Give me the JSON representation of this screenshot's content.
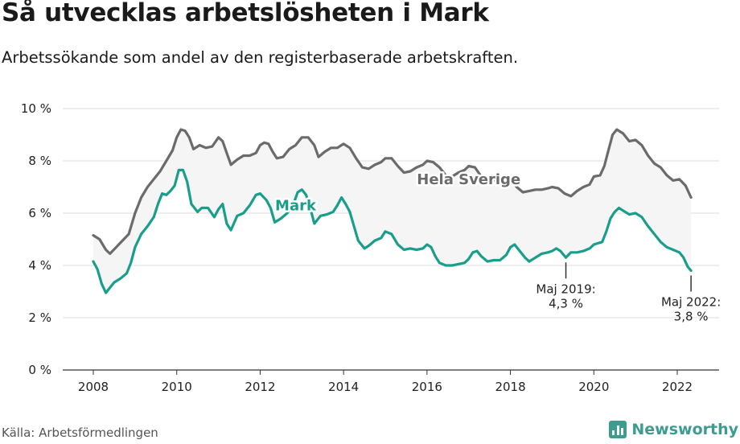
{
  "title": "Så utvecklas arbetslösheten i Mark",
  "subtitle": "Arbetssökande som andel av den registerbaserade arbetskraften.",
  "source": "Källa: Arbetsförmedlingen",
  "brand": {
    "name": "Newsworthy",
    "icon": "bar-chart-logo-icon"
  },
  "colors": {
    "mark": "#1a9e8c",
    "sweden": "#6b6b6e",
    "band": "#f5f5f5",
    "grid": "#dcdcdc",
    "brand": "#3c9c90"
  },
  "chart_data": {
    "type": "line",
    "title": "Så utvecklas arbetslösheten i Mark",
    "xlabel": "",
    "ylabel": "",
    "xlim": [
      2007.7,
      2023.0
    ],
    "ylim": [
      0,
      10
    ],
    "x_ticks": [
      "2008",
      "2010",
      "2012",
      "2014",
      "2016",
      "2018",
      "2020",
      "2022"
    ],
    "y_ticks": [
      "0 %",
      "2 %",
      "4 %",
      "6 %",
      "8 %",
      "10 %"
    ],
    "grid": "horizontal",
    "series": [
      {
        "name": "Hela Sverige",
        "color": "#6b6b6e",
        "points": [
          [
            2008.0,
            5.15
          ],
          [
            2008.15,
            5.0
          ],
          [
            2008.3,
            4.6
          ],
          [
            2008.4,
            4.45
          ],
          [
            2008.55,
            4.7
          ],
          [
            2008.7,
            4.95
          ],
          [
            2008.85,
            5.2
          ],
          [
            2009.0,
            6.0
          ],
          [
            2009.15,
            6.6
          ],
          [
            2009.3,
            7.0
          ],
          [
            2009.45,
            7.3
          ],
          [
            2009.6,
            7.6
          ],
          [
            2009.75,
            8.0
          ],
          [
            2009.9,
            8.4
          ],
          [
            2010.0,
            8.9
          ],
          [
            2010.1,
            9.2
          ],
          [
            2010.2,
            9.15
          ],
          [
            2010.3,
            8.9
          ],
          [
            2010.4,
            8.45
          ],
          [
            2010.55,
            8.6
          ],
          [
            2010.7,
            8.5
          ],
          [
            2010.85,
            8.55
          ],
          [
            2011.0,
            8.9
          ],
          [
            2011.1,
            8.75
          ],
          [
            2011.2,
            8.3
          ],
          [
            2011.3,
            7.85
          ],
          [
            2011.45,
            8.05
          ],
          [
            2011.6,
            8.2
          ],
          [
            2011.75,
            8.2
          ],
          [
            2011.9,
            8.3
          ],
          [
            2012.0,
            8.6
          ],
          [
            2012.1,
            8.7
          ],
          [
            2012.2,
            8.65
          ],
          [
            2012.3,
            8.35
          ],
          [
            2012.4,
            8.1
          ],
          [
            2012.55,
            8.15
          ],
          [
            2012.7,
            8.45
          ],
          [
            2012.85,
            8.6
          ],
          [
            2013.0,
            8.9
          ],
          [
            2013.15,
            8.9
          ],
          [
            2013.3,
            8.6
          ],
          [
            2013.4,
            8.15
          ],
          [
            2013.55,
            8.35
          ],
          [
            2013.7,
            8.5
          ],
          [
            2013.85,
            8.5
          ],
          [
            2014.0,
            8.65
          ],
          [
            2014.15,
            8.5
          ],
          [
            2014.3,
            8.1
          ],
          [
            2014.45,
            7.75
          ],
          [
            2014.6,
            7.7
          ],
          [
            2014.75,
            7.85
          ],
          [
            2014.9,
            7.95
          ],
          [
            2015.0,
            8.1
          ],
          [
            2015.15,
            8.1
          ],
          [
            2015.3,
            7.8
          ],
          [
            2015.45,
            7.55
          ],
          [
            2015.6,
            7.6
          ],
          [
            2015.75,
            7.75
          ],
          [
            2015.9,
            7.85
          ],
          [
            2016.0,
            8.0
          ],
          [
            2016.15,
            7.95
          ],
          [
            2016.3,
            7.75
          ],
          [
            2016.45,
            7.45
          ],
          [
            2016.6,
            7.4
          ],
          [
            2016.75,
            7.55
          ],
          [
            2016.9,
            7.65
          ],
          [
            2017.0,
            7.8
          ],
          [
            2017.15,
            7.75
          ],
          [
            2017.3,
            7.4
          ],
          [
            2017.5,
            7.3
          ],
          [
            2017.7,
            7.25
          ],
          [
            2017.85,
            7.2
          ],
          [
            2018.0,
            7.3
          ],
          [
            2018.15,
            7.0
          ],
          [
            2018.3,
            6.8
          ],
          [
            2018.45,
            6.85
          ],
          [
            2018.6,
            6.9
          ],
          [
            2018.75,
            6.9
          ],
          [
            2018.9,
            6.95
          ],
          [
            2019.0,
            7.0
          ],
          [
            2019.15,
            6.95
          ],
          [
            2019.3,
            6.75
          ],
          [
            2019.45,
            6.65
          ],
          [
            2019.6,
            6.85
          ],
          [
            2019.75,
            7.0
          ],
          [
            2019.9,
            7.1
          ],
          [
            2020.0,
            7.4
          ],
          [
            2020.15,
            7.45
          ],
          [
            2020.25,
            7.8
          ],
          [
            2020.35,
            8.4
          ],
          [
            2020.45,
            9.0
          ],
          [
            2020.55,
            9.2
          ],
          [
            2020.7,
            9.05
          ],
          [
            2020.85,
            8.75
          ],
          [
            2021.0,
            8.8
          ],
          [
            2021.15,
            8.6
          ],
          [
            2021.3,
            8.2
          ],
          [
            2021.45,
            7.9
          ],
          [
            2021.6,
            7.75
          ],
          [
            2021.75,
            7.45
          ],
          [
            2021.9,
            7.25
          ],
          [
            2022.05,
            7.3
          ],
          [
            2022.2,
            7.05
          ],
          [
            2022.33,
            6.6
          ]
        ]
      },
      {
        "name": "Mark",
        "color": "#1a9e8c",
        "points": [
          [
            2008.0,
            4.15
          ],
          [
            2008.1,
            3.85
          ],
          [
            2008.2,
            3.3
          ],
          [
            2008.3,
            2.95
          ],
          [
            2008.4,
            3.15
          ],
          [
            2008.5,
            3.35
          ],
          [
            2008.65,
            3.5
          ],
          [
            2008.8,
            3.7
          ],
          [
            2008.9,
            4.1
          ],
          [
            2009.0,
            4.7
          ],
          [
            2009.15,
            5.2
          ],
          [
            2009.3,
            5.5
          ],
          [
            2009.45,
            5.85
          ],
          [
            2009.55,
            6.35
          ],
          [
            2009.65,
            6.75
          ],
          [
            2009.75,
            6.7
          ],
          [
            2009.85,
            6.85
          ],
          [
            2009.95,
            7.05
          ],
          [
            2010.05,
            7.65
          ],
          [
            2010.15,
            7.65
          ],
          [
            2010.25,
            7.2
          ],
          [
            2010.35,
            6.35
          ],
          [
            2010.5,
            6.05
          ],
          [
            2010.6,
            6.2
          ],
          [
            2010.75,
            6.2
          ],
          [
            2010.9,
            5.85
          ],
          [
            2011.0,
            6.15
          ],
          [
            2011.1,
            6.35
          ],
          [
            2011.2,
            5.6
          ],
          [
            2011.3,
            5.35
          ],
          [
            2011.45,
            5.9
          ],
          [
            2011.6,
            6.0
          ],
          [
            2011.75,
            6.3
          ],
          [
            2011.9,
            6.7
          ],
          [
            2012.0,
            6.75
          ],
          [
            2012.15,
            6.5
          ],
          [
            2012.25,
            6.2
          ],
          [
            2012.35,
            5.65
          ],
          [
            2012.5,
            5.8
          ],
          [
            2012.65,
            6.0
          ],
          [
            2012.8,
            6.35
          ],
          [
            2012.9,
            6.8
          ],
          [
            2013.0,
            6.9
          ],
          [
            2013.1,
            6.7
          ],
          [
            2013.2,
            6.2
          ],
          [
            2013.3,
            5.6
          ],
          [
            2013.45,
            5.9
          ],
          [
            2013.6,
            5.95
          ],
          [
            2013.75,
            6.05
          ],
          [
            2013.85,
            6.3
          ],
          [
            2013.95,
            6.6
          ],
          [
            2014.05,
            6.35
          ],
          [
            2014.15,
            6.05
          ],
          [
            2014.25,
            5.5
          ],
          [
            2014.35,
            4.95
          ],
          [
            2014.5,
            4.65
          ],
          [
            2014.6,
            4.75
          ],
          [
            2014.75,
            4.95
          ],
          [
            2014.9,
            5.05
          ],
          [
            2015.0,
            5.3
          ],
          [
            2015.15,
            5.2
          ],
          [
            2015.3,
            4.8
          ],
          [
            2015.45,
            4.6
          ],
          [
            2015.6,
            4.65
          ],
          [
            2015.75,
            4.6
          ],
          [
            2015.9,
            4.65
          ],
          [
            2016.0,
            4.8
          ],
          [
            2016.1,
            4.7
          ],
          [
            2016.2,
            4.35
          ],
          [
            2016.3,
            4.1
          ],
          [
            2016.45,
            4.0
          ],
          [
            2016.6,
            4.0
          ],
          [
            2016.75,
            4.05
          ],
          [
            2016.9,
            4.1
          ],
          [
            2017.0,
            4.25
          ],
          [
            2017.1,
            4.5
          ],
          [
            2017.2,
            4.55
          ],
          [
            2017.3,
            4.35
          ],
          [
            2017.45,
            4.15
          ],
          [
            2017.6,
            4.2
          ],
          [
            2017.75,
            4.2
          ],
          [
            2017.9,
            4.4
          ],
          [
            2018.0,
            4.7
          ],
          [
            2018.1,
            4.8
          ],
          [
            2018.2,
            4.6
          ],
          [
            2018.35,
            4.3
          ],
          [
            2018.45,
            4.15
          ],
          [
            2018.6,
            4.3
          ],
          [
            2018.75,
            4.45
          ],
          [
            2018.9,
            4.5
          ],
          [
            2019.0,
            4.55
          ],
          [
            2019.1,
            4.65
          ],
          [
            2019.2,
            4.55
          ],
          [
            2019.33,
            4.3
          ],
          [
            2019.45,
            4.5
          ],
          [
            2019.6,
            4.5
          ],
          [
            2019.75,
            4.55
          ],
          [
            2019.9,
            4.65
          ],
          [
            2020.0,
            4.8
          ],
          [
            2020.1,
            4.85
          ],
          [
            2020.2,
            4.9
          ],
          [
            2020.3,
            5.3
          ],
          [
            2020.4,
            5.8
          ],
          [
            2020.5,
            6.05
          ],
          [
            2020.6,
            6.2
          ],
          [
            2020.7,
            6.1
          ],
          [
            2020.85,
            5.95
          ],
          [
            2021.0,
            6.0
          ],
          [
            2021.15,
            5.85
          ],
          [
            2021.3,
            5.5
          ],
          [
            2021.45,
            5.2
          ],
          [
            2021.6,
            4.9
          ],
          [
            2021.75,
            4.7
          ],
          [
            2021.9,
            4.6
          ],
          [
            2022.05,
            4.5
          ],
          [
            2022.15,
            4.3
          ],
          [
            2022.25,
            3.95
          ],
          [
            2022.33,
            3.8
          ]
        ]
      }
    ],
    "labels": [
      {
        "text": "Hela Sverige",
        "series": "Hela Sverige",
        "x": 2017.0,
        "y": 7.3
      },
      {
        "text": "Mark",
        "series": "Mark",
        "x": 2012.85,
        "y": 6.3
      }
    ],
    "annotations": [
      {
        "lines": [
          "Maj 2019:",
          "4,3 %"
        ],
        "x": 2019.33,
        "y": 4.3
      },
      {
        "lines": [
          "Maj 2022:",
          "3,8 %"
        ],
        "x": 2022.33,
        "y": 3.8
      }
    ]
  }
}
